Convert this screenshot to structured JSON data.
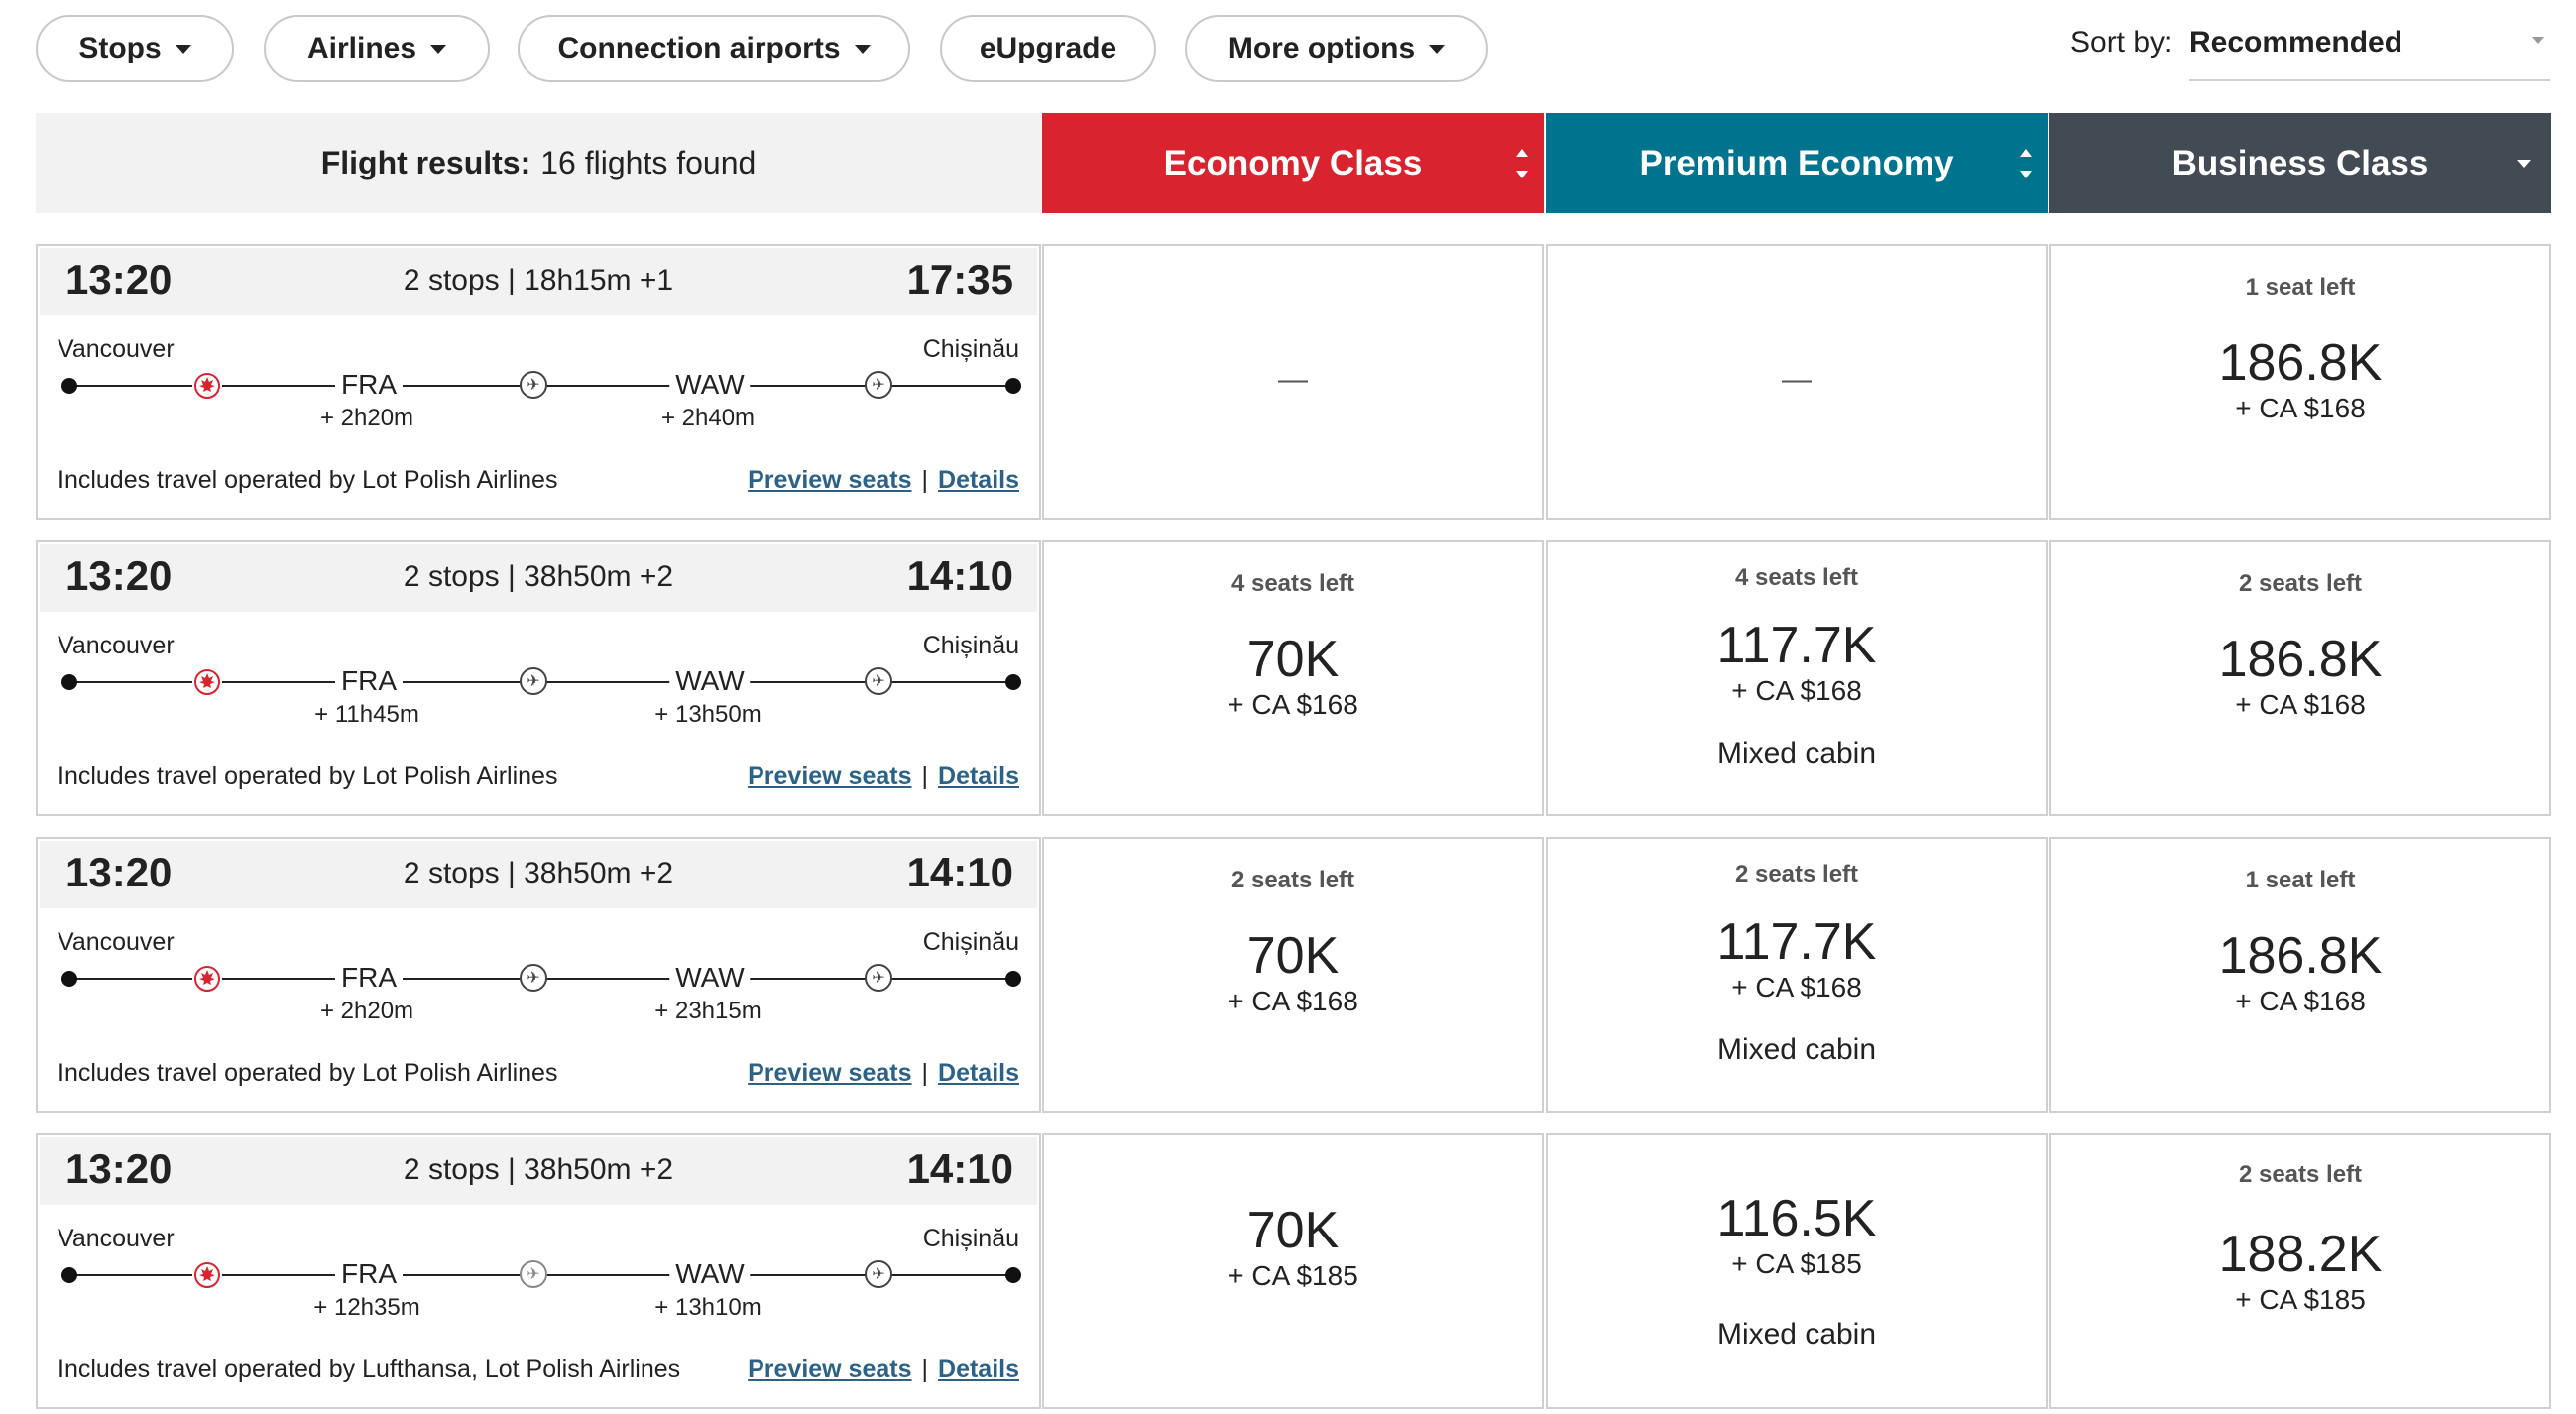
{
  "filters": [
    {
      "label": "Stops"
    },
    {
      "label": "Airlines"
    },
    {
      "label": "Connection airports"
    },
    {
      "label": "eUpgrade"
    },
    {
      "label": "More options"
    }
  ],
  "sort": {
    "label": "Sort by:",
    "value": "Recommended"
  },
  "results": {
    "label": "Flight results:",
    "count_text": "16 flights found"
  },
  "cabins": [
    {
      "label": "Economy Class",
      "color": "#d9232e"
    },
    {
      "label": "Premium Economy",
      "color": "#00748e"
    },
    {
      "label": "Business Class",
      "color": "#424a53"
    }
  ],
  "links": {
    "preview": "Preview seats",
    "details": "Details",
    "separator": "|"
  },
  "flights": [
    {
      "depart": "13:20",
      "arrive": "17:35",
      "summary": "2 stops | 18h15m +1",
      "from": "Vancouver",
      "to": "Chișinău",
      "stops": [
        {
          "code": "FRA",
          "layover": "+ 2h20m"
        },
        {
          "code": "WAW",
          "layover": "+ 2h40m"
        }
      ],
      "operated": "Includes travel operated by Lot Polish Airlines",
      "fares": {
        "economy": {
          "dash": "—"
        },
        "premium": {
          "dash": "—"
        },
        "business": {
          "seats": "1 seat left",
          "points": "186.8K",
          "cash": "+ CA $168"
        }
      }
    },
    {
      "depart": "13:20",
      "arrive": "14:10",
      "summary": "2 stops | 38h50m +2",
      "from": "Vancouver",
      "to": "Chișinău",
      "stops": [
        {
          "code": "FRA",
          "layover": "+ 11h45m"
        },
        {
          "code": "WAW",
          "layover": "+ 13h50m"
        }
      ],
      "operated": "Includes travel operated by Lot Polish Airlines",
      "fares": {
        "economy": {
          "seats": "4 seats left",
          "points": "70K",
          "cash": "+ CA $168"
        },
        "premium": {
          "seats": "4 seats left",
          "points": "117.7K",
          "cash": "+ CA $168",
          "note": "Mixed cabin"
        },
        "business": {
          "seats": "2 seats left",
          "points": "186.8K",
          "cash": "+ CA $168"
        }
      }
    },
    {
      "depart": "13:20",
      "arrive": "14:10",
      "summary": "2 stops | 38h50m +2",
      "from": "Vancouver",
      "to": "Chișinău",
      "stops": [
        {
          "code": "FRA",
          "layover": "+ 2h20m"
        },
        {
          "code": "WAW",
          "layover": "+ 23h15m"
        }
      ],
      "operated": "Includes travel operated by Lot Polish Airlines",
      "fares": {
        "economy": {
          "seats": "2 seats left",
          "points": "70K",
          "cash": "+ CA $168"
        },
        "premium": {
          "seats": "2 seats left",
          "points": "117.7K",
          "cash": "+ CA $168",
          "note": "Mixed cabin"
        },
        "business": {
          "seats": "1 seat left",
          "points": "186.8K",
          "cash": "+ CA $168"
        }
      }
    },
    {
      "depart": "13:20",
      "arrive": "14:10",
      "summary": "2 stops | 38h50m +2",
      "from": "Vancouver",
      "to": "Chișinău",
      "stops": [
        {
          "code": "FRA",
          "layover": "+ 12h35m"
        },
        {
          "code": "WAW",
          "layover": "+ 13h10m"
        }
      ],
      "operated": "Includes travel operated by Lufthansa, Lot Polish Airlines",
      "fares": {
        "economy": {
          "points": "70K",
          "cash": "+ CA $185"
        },
        "premium": {
          "points": "116.5K",
          "cash": "+ CA $185",
          "note": "Mixed cabin"
        },
        "business": {
          "seats": "2 seats left",
          "points": "188.2K",
          "cash": "+ CA $185"
        }
      }
    }
  ]
}
